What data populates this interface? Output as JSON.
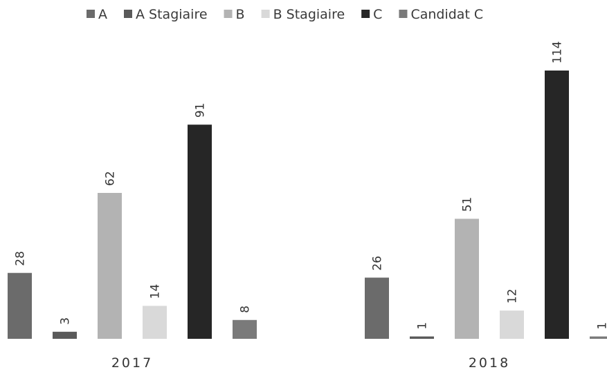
{
  "chart_data": {
    "type": "bar",
    "categories": [
      "2017",
      "2018"
    ],
    "series": [
      {
        "name": "A",
        "values": [
          28,
          26
        ],
        "color": "#6b6b6b"
      },
      {
        "name": "A Stagiaire",
        "values": [
          3,
          1
        ],
        "color": "#5a5a5a"
      },
      {
        "name": "B",
        "values": [
          62,
          51
        ],
        "color": "#b3b3b3"
      },
      {
        "name": "B Stagiaire",
        "values": [
          14,
          12
        ],
        "color": "#d9d9d9"
      },
      {
        "name": "C",
        "values": [
          91,
          114
        ],
        "color": "#262626"
      },
      {
        "name": "Candidat C",
        "values": [
          8,
          1
        ],
        "color": "#7a7a7a"
      }
    ],
    "legend_position": "top",
    "grid": false,
    "ylim": [
      0,
      114
    ]
  }
}
